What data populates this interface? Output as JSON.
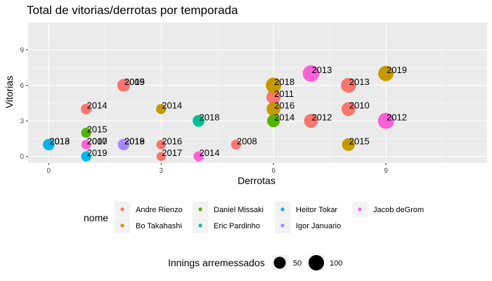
{
  "chart_data": {
    "type": "scatter",
    "title": "Total de vitorias/derrotas por temporada",
    "xlabel": "Derrotas",
    "ylabel": "Vitorias",
    "xlim": [
      -0.55,
      11.7
    ],
    "ylim": [
      -0.55,
      11.3
    ],
    "xticks": [
      0,
      3,
      6,
      9
    ],
    "yticks": [
      0,
      3,
      6,
      9
    ],
    "grid": true,
    "color_legend": {
      "title": "nome",
      "entries": [
        {
          "name": "Andre Rienzo",
          "color": "#F8766D"
        },
        {
          "name": "Bo Takahashi",
          "color": "#C49A00"
        },
        {
          "name": "Daniel Missaki",
          "color": "#53B400"
        },
        {
          "name": "Eric Pardinho",
          "color": "#00C094"
        },
        {
          "name": "Heitor Tokar",
          "color": "#00B6EB"
        },
        {
          "name": "Igor Januario",
          "color": "#A58AFF"
        },
        {
          "name": "Jacob deGrom",
          "color": "#FB61D7"
        }
      ]
    },
    "size_legend": {
      "title": "Innings arremessados",
      "entries": [
        {
          "label": "50",
          "value": 50
        },
        {
          "label": "100",
          "value": 100
        }
      ]
    },
    "points": [
      {
        "nome": "Andre Rienzo",
        "x": 1,
        "y": 4,
        "innings": 35,
        "label": "2014"
      },
      {
        "nome": "Andre Rienzo",
        "x": 2,
        "y": 6,
        "innings": 60,
        "label": "2009"
      },
      {
        "nome": "Andre Rienzo",
        "x": 2,
        "y": 6,
        "innings": 58,
        "label": "2015"
      },
      {
        "nome": "Andre Rienzo",
        "x": 3,
        "y": 1,
        "innings": 25,
        "label": "2016"
      },
      {
        "nome": "Andre Rienzo",
        "x": 3,
        "y": 0,
        "innings": 22,
        "label": "2017"
      },
      {
        "nome": "Andre Rienzo",
        "x": 5,
        "y": 1,
        "innings": 30,
        "label": "2008"
      },
      {
        "nome": "Andre Rienzo",
        "x": 6,
        "y": 5,
        "innings": 80,
        "label": "2011"
      },
      {
        "nome": "Andre Rienzo",
        "x": 7,
        "y": 3,
        "innings": 75,
        "label": "2012"
      },
      {
        "nome": "Andre Rienzo",
        "x": 8,
        "y": 4,
        "innings": 75,
        "label": "2010"
      },
      {
        "nome": "Andre Rienzo",
        "x": 8,
        "y": 6,
        "innings": 92,
        "label": "2013"
      },
      {
        "nome": "Bo Takahashi",
        "x": 3,
        "y": 4,
        "innings": 30,
        "label": "2014"
      },
      {
        "nome": "Bo Takahashi",
        "x": 6,
        "y": 6,
        "innings": 100,
        "label": "2018"
      },
      {
        "nome": "Bo Takahashi",
        "x": 6,
        "y": 4,
        "innings": 75,
        "label": "2016"
      },
      {
        "nome": "Bo Takahashi",
        "x": 8,
        "y": 1,
        "innings": 60,
        "label": "2015"
      },
      {
        "nome": "Bo Takahashi",
        "x": 9,
        "y": 7,
        "innings": 100,
        "label": "2019"
      },
      {
        "nome": "Daniel Missaki",
        "x": 1,
        "y": 2,
        "innings": 30,
        "label": "2015"
      },
      {
        "nome": "Daniel Missaki",
        "x": 6,
        "y": 3,
        "innings": 60,
        "label": "2014"
      },
      {
        "nome": "Eric Pardinho",
        "x": 4,
        "y": 3,
        "innings": 48,
        "label": "2018"
      },
      {
        "nome": "Heitor Tokar",
        "x": 0,
        "y": 1,
        "innings": 45,
        "label": "2013"
      },
      {
        "nome": "Heitor Tokar",
        "x": 0,
        "y": 1,
        "innings": 40,
        "label": "2018"
      },
      {
        "nome": "Heitor Tokar",
        "x": 1,
        "y": 0,
        "innings": 30,
        "label": "2019"
      },
      {
        "nome": "Igor Januario",
        "x": 2,
        "y": 1,
        "innings": 45,
        "label": "2019"
      },
      {
        "nome": "Igor Januario",
        "x": 2,
        "y": 1,
        "innings": 40,
        "label": "2018"
      },
      {
        "nome": "Jacob deGrom",
        "x": 1,
        "y": 1,
        "innings": 25,
        "label": "2007"
      },
      {
        "nome": "Jacob deGrom",
        "x": 1,
        "y": 1,
        "innings": 22,
        "label": "2010"
      },
      {
        "nome": "Jacob deGrom",
        "x": 4,
        "y": 0,
        "innings": 30,
        "label": "2014"
      },
      {
        "nome": "Jacob deGrom",
        "x": 7,
        "y": 7,
        "innings": 120,
        "label": "2013"
      },
      {
        "nome": "Jacob deGrom",
        "x": 9,
        "y": 3,
        "innings": 110,
        "label": "2012"
      }
    ]
  }
}
